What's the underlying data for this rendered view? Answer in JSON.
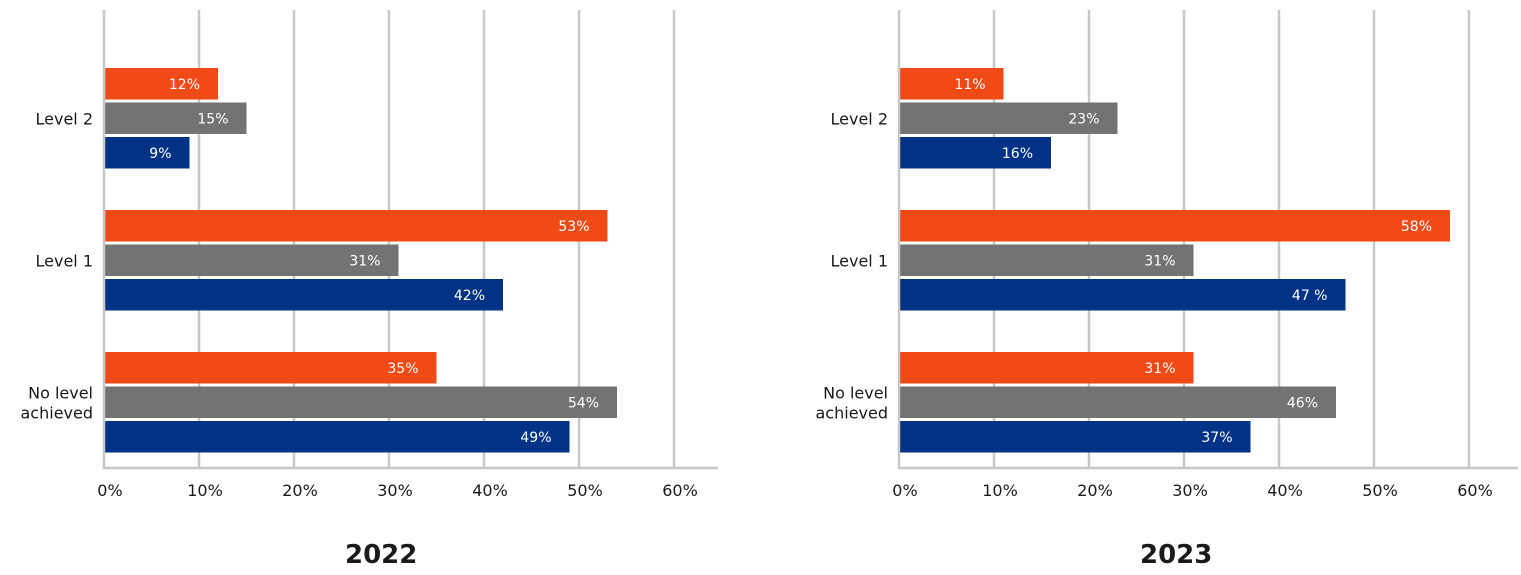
{
  "colors": {
    "series_a": "#f04a16",
    "series_b": "#737373",
    "series_c": "#003386",
    "grid": "#c8c8c8"
  },
  "chart_data": [
    {
      "type": "bar",
      "orientation": "horizontal",
      "title": "2022",
      "categories": [
        "Level 2",
        "Level 1",
        "No level achieved"
      ],
      "category_lines": [
        [
          "Level 2"
        ],
        [
          "Level 1"
        ],
        [
          "No level",
          "achieved"
        ]
      ],
      "series": [
        {
          "color": "#f04a16",
          "values": [
            12,
            53,
            35
          ],
          "labels": [
            "12%",
            "53%",
            "35%"
          ]
        },
        {
          "color": "#737373",
          "values": [
            15,
            31,
            54
          ],
          "labels": [
            "15%",
            "31%",
            "54%"
          ]
        },
        {
          "color": "#003386",
          "values": [
            9,
            42,
            49
          ],
          "labels": [
            "9%",
            "42%",
            "49%"
          ]
        }
      ],
      "xlim": [
        0,
        60
      ],
      "xticks": [
        "0%",
        "10%",
        "20%",
        "30%",
        "40%",
        "50%",
        "60%"
      ],
      "grid": true
    },
    {
      "type": "bar",
      "orientation": "horizontal",
      "title": "2023",
      "categories": [
        "Level 2",
        "Level 1",
        "No level achieved"
      ],
      "category_lines": [
        [
          "Level 2"
        ],
        [
          "Level 1"
        ],
        [
          "No level",
          "achieved"
        ]
      ],
      "series": [
        {
          "color": "#f04a16",
          "values": [
            11,
            58,
            31
          ],
          "labels": [
            "11%",
            "58%",
            "31%"
          ]
        },
        {
          "color": "#737373",
          "values": [
            23,
            31,
            46
          ],
          "labels": [
            "23%",
            "31%",
            "46%"
          ]
        },
        {
          "color": "#003386",
          "values": [
            16,
            47,
            37
          ],
          "labels": [
            "16%",
            "47 %",
            "37%"
          ]
        }
      ],
      "xlim": [
        0,
        60
      ],
      "xticks": [
        "0%",
        "10%",
        "20%",
        "30%",
        "40%",
        "50%",
        "60%"
      ],
      "grid": true
    }
  ]
}
